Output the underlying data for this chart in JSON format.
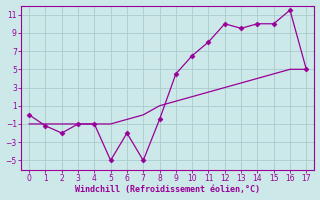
{
  "xlabel": "Windchill (Refroidissement éolien,°C)",
  "x": [
    0,
    1,
    2,
    3,
    4,
    5,
    6,
    7,
    8,
    9,
    10,
    11,
    12,
    13,
    14,
    15,
    16,
    17
  ],
  "y_main": [
    0,
    -1.2,
    -2,
    -1,
    -1,
    -5,
    -2,
    -5,
    -0.5,
    4.5,
    6.5,
    8,
    10,
    9.5,
    10,
    10,
    11.5,
    5
  ],
  "y_smooth": [
    -1,
    -1,
    -1,
    -1,
    -1,
    -1,
    -0.5,
    0,
    1,
    1.5,
    2,
    2.5,
    3,
    3.5,
    4,
    4.5,
    5,
    5
  ],
  "line_color": "#990099",
  "marker": "D",
  "markersize": 2.5,
  "bg_color": "#cce8e8",
  "grid_color": "#b0d8d8",
  "ylim": [
    -6,
    12
  ],
  "xlim": [
    -0.5,
    17.5
  ],
  "yticks": [
    -5,
    -3,
    -1,
    1,
    3,
    5,
    7,
    9,
    11
  ],
  "xticks": [
    0,
    1,
    2,
    3,
    4,
    5,
    6,
    7,
    8,
    9,
    10,
    11,
    12,
    13,
    14,
    15,
    16,
    17
  ],
  "tick_fontsize": 5.5,
  "xlabel_fontsize": 6
}
